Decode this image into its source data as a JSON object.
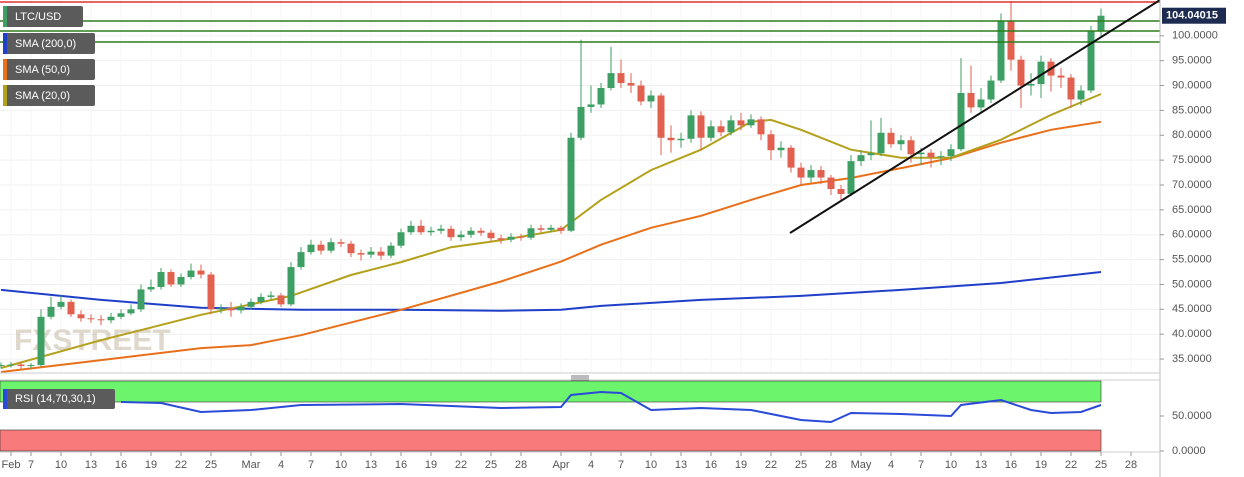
{
  "chart_data": [
    {
      "type": "candlestick",
      "name": "LTC/USD",
      "color_up": "#3d9f63",
      "color_down": "#e1604f",
      "x": [
        4,
        5,
        6,
        7,
        8,
        9,
        10,
        11,
        12,
        13,
        14,
        15,
        16,
        17,
        18,
        19,
        20,
        21,
        22,
        23,
        24,
        25,
        26,
        27,
        28,
        29,
        30,
        31,
        32,
        33,
        34,
        35,
        36,
        37,
        38,
        39,
        40,
        41,
        42,
        43,
        44,
        45,
        46,
        47,
        48,
        49,
        50,
        51,
        52,
        53,
        54,
        55,
        56,
        57,
        58,
        59,
        60,
        61,
        62,
        63,
        64,
        65,
        66,
        67,
        68,
        69,
        70,
        71,
        72,
        73,
        74,
        75,
        76,
        77,
        78,
        79,
        80,
        81,
        82,
        83,
        84,
        85,
        86,
        87,
        88,
        89,
        90,
        91,
        92,
        93,
        94,
        95,
        96,
        97,
        98,
        99,
        100,
        101,
        102,
        103,
        104,
        105,
        106,
        107,
        108,
        109,
        110,
        111,
        112,
        113,
        114
      ],
      "open": [
        33.6,
        33.8,
        33.9,
        33.6,
        33.8,
        43.5,
        45.5,
        46.5,
        44.0,
        43.2,
        43.0,
        42.8,
        43.5,
        44.2,
        45.0,
        49.0,
        49.5,
        52.5,
        50.0,
        51.5,
        52.8,
        52.0,
        45.0,
        45.2,
        44.8,
        45.5,
        46.5,
        47.5,
        47.8,
        46.0,
        53.5,
        56.5,
        58.0,
        56.8,
        58.5,
        58.2,
        56.3,
        56.0,
        56.6,
        55.8,
        57.8,
        60.5,
        61.8,
        60.5,
        60.8,
        61.2,
        59.5,
        60.0,
        60.8,
        60.4,
        59.3,
        59.0,
        59.6,
        59.4,
        61.3,
        61.0,
        61.4,
        60.8,
        79.5,
        85.7,
        86.2,
        89.5,
        92.5,
        90.5,
        90.0,
        86.8,
        88.0,
        79.5,
        79.0,
        79.3,
        84.0,
        79.5,
        81.8,
        80.6,
        83.0,
        82.0,
        83.2,
        80.2,
        77.0,
        77.5,
        73.5,
        71.5,
        73.0,
        71.5,
        69.2,
        68.2,
        74.8,
        76.0,
        76.4,
        80.5,
        78.2,
        79.0,
        76.2,
        76.5,
        75.6,
        75.8,
        77.2,
        88.5,
        85.6,
        87.2,
        91.0,
        103.0,
        95.2,
        90.0,
        90.3,
        94.8,
        92.0,
        91.6,
        87.2,
        89.0,
        101.0
      ],
      "high": [
        34.3,
        34.4,
        34.3,
        34.2,
        45.0,
        47.5,
        47.8,
        47.0,
        44.8,
        44.0,
        43.8,
        44.3,
        45.0,
        46.0,
        50.0,
        51.0,
        53.3,
        53.0,
        52.2,
        54.2,
        54.0,
        52.5,
        46.0,
        46.5,
        46.2,
        47.2,
        48.2,
        48.6,
        48.3,
        54.5,
        57.5,
        59.0,
        58.8,
        59.3,
        59.2,
        58.8,
        57.0,
        57.5,
        57.5,
        58.5,
        61.2,
        62.8,
        63.0,
        61.6,
        62.0,
        61.8,
        60.8,
        61.5,
        61.4,
        61.0,
        60.0,
        60.3,
        60.2,
        62.0,
        62.0,
        62.0,
        61.8,
        80.5,
        99.2,
        90.0,
        90.5,
        97.8,
        95.2,
        92.5,
        91.0,
        89.0,
        88.5,
        82.0,
        80.5,
        85.0,
        84.8,
        83.0,
        83.0,
        84.0,
        84.5,
        84.2,
        83.8,
        81.0,
        78.8,
        78.0,
        74.5,
        74.0,
        73.8,
        72.0,
        70.0,
        76.0,
        77.0,
        83.0,
        83.5,
        81.5,
        80.0,
        79.8,
        77.5,
        77.2,
        76.8,
        78.2,
        95.5,
        94.0,
        89.5,
        92.0,
        104.5,
        107.0,
        96.0,
        92.5,
        96.0,
        95.5,
        93.5,
        92.3,
        90.0,
        102.0,
        105.5
      ],
      "low": [
        33.1,
        33.3,
        33.1,
        33.0,
        33.5,
        43.0,
        45.0,
        43.5,
        42.5,
        42.3,
        41.8,
        42.2,
        43.0,
        43.8,
        44.5,
        48.5,
        49.0,
        49.5,
        49.5,
        51.0,
        51.2,
        44.0,
        44.2,
        43.5,
        44.2,
        45.0,
        46.0,
        47.0,
        45.5,
        45.6,
        53.0,
        56.0,
        56.0,
        56.3,
        57.5,
        55.5,
        54.8,
        55.3,
        55.0,
        55.3,
        57.3,
        60.0,
        60.0,
        59.8,
        60.2,
        58.8,
        58.8,
        59.4,
        59.8,
        58.6,
        58.2,
        58.5,
        58.8,
        59.0,
        60.5,
        60.5,
        60.2,
        60.5,
        79.0,
        84.5,
        85.5,
        89.0,
        89.5,
        88.5,
        86.0,
        85.5,
        76.0,
        76.5,
        77.5,
        78.5,
        77.0,
        78.8,
        79.8,
        80.0,
        81.0,
        81.5,
        79.0,
        75.0,
        75.5,
        72.5,
        70.0,
        70.5,
        70.2,
        68.0,
        67.0,
        67.8,
        73.8,
        75.0,
        75.8,
        77.5,
        77.0,
        74.5,
        74.0,
        73.5,
        74.0,
        74.8,
        76.8,
        84.5,
        84.8,
        86.5,
        90.5,
        93.0,
        85.5,
        88.0,
        87.5,
        88.8,
        89.5,
        85.5,
        86.0,
        88.5,
        100.0
      ],
      "close": [
        33.8,
        33.9,
        33.6,
        33.8,
        43.5,
        45.5,
        46.5,
        44.0,
        43.2,
        43.0,
        42.8,
        43.5,
        44.2,
        45.0,
        49.0,
        49.5,
        52.5,
        50.0,
        51.5,
        52.8,
        52.0,
        45.0,
        45.2,
        44.8,
        45.5,
        46.5,
        47.5,
        47.8,
        46.0,
        53.5,
        56.5,
        58.0,
        56.8,
        58.5,
        58.2,
        56.3,
        56.0,
        56.6,
        55.8,
        57.8,
        60.5,
        61.8,
        60.5,
        60.8,
        61.2,
        59.5,
        60.0,
        60.8,
        60.4,
        59.3,
        59.0,
        59.6,
        59.4,
        61.3,
        61.0,
        61.4,
        60.8,
        79.5,
        85.7,
        86.2,
        89.5,
        92.5,
        90.5,
        90.0,
        86.8,
        88.0,
        79.5,
        79.0,
        79.3,
        84.0,
        79.5,
        81.8,
        80.6,
        83.0,
        82.0,
        83.2,
        80.2,
        77.0,
        77.5,
        73.5,
        71.5,
        73.0,
        71.5,
        69.2,
        68.2,
        74.8,
        76.0,
        76.4,
        80.5,
        78.2,
        79.0,
        76.2,
        76.5,
        75.6,
        75.8,
        77.2,
        88.5,
        85.6,
        87.2,
        91.0,
        103.0,
        95.2,
        90.0,
        90.3,
        94.8,
        92.0,
        91.6,
        87.2,
        89.0,
        101.0,
        104.04015
      ],
      "last_label": "104.04015",
      "series": [
        {
          "name": "SMA (200,0)",
          "color": "#1f3fc8",
          "x": [
            4,
            14,
            24,
            34,
            44,
            54,
            60,
            64,
            74,
            84,
            94,
            104,
            114
          ],
          "values": [
            48.9,
            46.9,
            45.3,
            44.9,
            44.9,
            44.7,
            44.9,
            45.7,
            46.9,
            47.7,
            48.9,
            50.3,
            52.5
          ]
        },
        {
          "name": "SMA (50,0)",
          "color": "#e8701a",
          "x": [
            4,
            14,
            24,
            29,
            34,
            44,
            54,
            60,
            64,
            69,
            74,
            79,
            84,
            89,
            94,
            99,
            104,
            109,
            114
          ],
          "values": [
            32.4,
            34.8,
            37.2,
            37.8,
            39.8,
            44.9,
            50.6,
            54.6,
            58.0,
            61.4,
            63.8,
            67.0,
            70.0,
            71.4,
            73.4,
            75.4,
            78.5,
            81.1,
            82.7
          ]
        },
        {
          "name": "SMA (20,0)",
          "color": "#b3a01b",
          "x": [
            4,
            14,
            24,
            33,
            39,
            44,
            49,
            54,
            60,
            64,
            69,
            74,
            79,
            81,
            84,
            89,
            94,
            99,
            104,
            109,
            114
          ],
          "values": [
            33.2,
            38.8,
            43.9,
            47.7,
            51.9,
            54.5,
            57.5,
            58.9,
            61.0,
            67.0,
            73.0,
            77.1,
            82.7,
            83.1,
            81.1,
            77.1,
            75.5,
            75.5,
            79.1,
            84.1,
            88.3
          ]
        }
      ],
      "xlim": [
        3.9,
        119.9
      ],
      "ylim": [
        32.4,
        107.2
      ],
      "yticks": [
        {
          "value": 35,
          "label": "35.0000"
        },
        {
          "value": 40,
          "label": "40.0000"
        },
        {
          "value": 45,
          "label": "45.0000"
        },
        {
          "value": 50,
          "label": "50.0000"
        },
        {
          "value": 55,
          "label": "55.0000"
        },
        {
          "value": 60,
          "label": "60.0000"
        },
        {
          "value": 65,
          "label": "65.0000"
        },
        {
          "value": 70,
          "label": "70.0000"
        },
        {
          "value": 75,
          "label": "75.0000"
        },
        {
          "value": 80,
          "label": "80.0000"
        },
        {
          "value": 85,
          "label": "85.0000"
        },
        {
          "value": 90,
          "label": "90.0000"
        },
        {
          "value": 95,
          "label": "95.0000"
        },
        {
          "value": 100,
          "label": "100.0000"
        }
      ],
      "grid": true,
      "watermark": "FXSTREET"
    },
    {
      "type": "line",
      "name": "RSI (14,70,30,1)",
      "color": "#2a4bd7",
      "x": [
        16,
        20,
        24,
        29,
        34,
        44,
        54,
        60,
        61,
        64,
        66,
        69,
        74,
        79,
        84,
        87,
        89,
        94,
        99,
        100,
        104,
        107,
        109,
        112,
        114
      ],
      "values": [
        70.0,
        68.6,
        55.7,
        58.6,
        65.7,
        67.1,
        61.4,
        62.9,
        80.0,
        84.3,
        82.9,
        58.6,
        61.4,
        58.6,
        44.3,
        41.4,
        54.3,
        52.9,
        50.0,
        65.7,
        72.9,
        58.6,
        54.3,
        55.7,
        65.7
      ],
      "bands": [
        {
          "from": 70,
          "to": 100,
          "color": "#6cf56c"
        },
        {
          "from": 0,
          "to": 30,
          "color": "#f87a7a"
        }
      ],
      "xlim": [
        3.9,
        119.9
      ],
      "ylim": [
        0,
        100
      ],
      "yticks": [
        {
          "value": 50,
          "label": "50.0000"
        },
        {
          "value": 0,
          "label": "0.0000"
        }
      ],
      "xticks": [
        {
          "value": 5,
          "label": "Feb"
        },
        7,
        10,
        13,
        16,
        19,
        22,
        25,
        {
          "value": 29,
          "label": "Mar"
        },
        {
          "value": 32,
          "label": "4"
        },
        {
          "value": 35,
          "label": "7"
        },
        {
          "value": 38,
          "label": "10"
        },
        {
          "value": 41,
          "label": "13"
        },
        {
          "value": 44,
          "label": "16"
        },
        {
          "value": 47,
          "label": "19"
        },
        {
          "value": 50,
          "label": "22"
        },
        {
          "value": 53,
          "label": "25"
        },
        {
          "value": 56,
          "label": "28"
        },
        {
          "value": 60,
          "label": "Apr"
        },
        {
          "value": 63,
          "label": "4"
        },
        {
          "value": 66,
          "label": "7"
        },
        {
          "value": 69,
          "label": "10"
        },
        {
          "value": 72,
          "label": "13"
        },
        {
          "value": 75,
          "label": "16"
        },
        {
          "value": 78,
          "label": "19"
        },
        {
          "value": 81,
          "label": "22"
        },
        {
          "value": 84,
          "label": "25"
        },
        {
          "value": 87,
          "label": "28"
        },
        {
          "value": 90,
          "label": "May"
        },
        {
          "value": 93,
          "label": "4"
        },
        {
          "value": 96,
          "label": "7"
        },
        {
          "value": 99,
          "label": "10"
        },
        {
          "value": 102,
          "label": "13"
        },
        {
          "value": 105,
          "label": "16"
        },
        {
          "value": 108,
          "label": "19"
        },
        {
          "value": 111,
          "label": "22"
        },
        {
          "value": 114,
          "label": "25"
        },
        {
          "value": 117,
          "label": "28"
        }
      ]
    }
  ]
}
